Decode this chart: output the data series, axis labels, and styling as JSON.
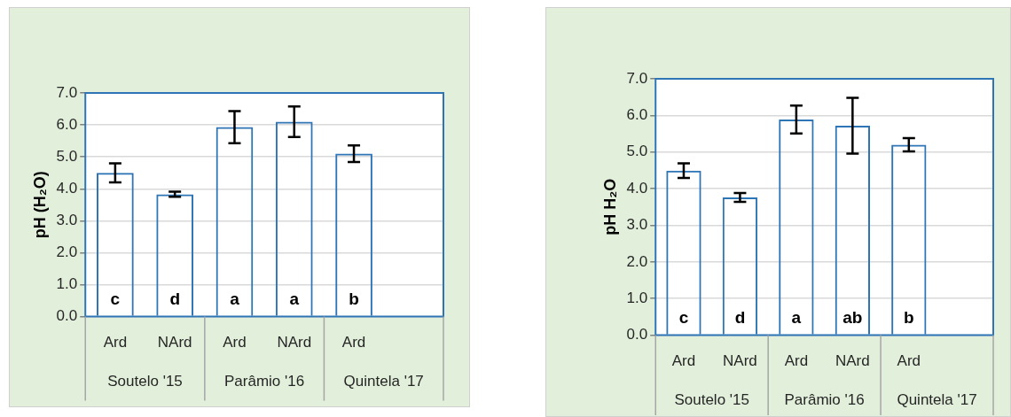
{
  "chart_data": [
    {
      "type": "bar",
      "ylabel": "pH (H₂O)",
      "categories": [
        "Ard",
        "NArd",
        "Ard",
        "NArd",
        "Ard",
        null
      ],
      "values": [
        4.5,
        3.83,
        5.93,
        6.1,
        5.1,
        null
      ],
      "errors": [
        0.3,
        0.08,
        0.5,
        0.48,
        0.26,
        null
      ],
      "value_labels": [
        "c",
        "d",
        "a",
        "a",
        "b",
        null
      ],
      "color": "#2e75b6",
      "ylim": [
        0,
        7
      ],
      "yticks": [
        {
          "value": 0,
          "label": "0.0"
        },
        {
          "value": 1,
          "label": "1.0"
        },
        {
          "value": 2,
          "label": "2.0"
        },
        {
          "value": 3,
          "label": "3.0"
        },
        {
          "value": 4,
          "label": "4.0"
        },
        {
          "value": 5,
          "label": "5.0"
        },
        {
          "value": 6,
          "label": "6.0"
        },
        {
          "value": 7,
          "label": "7.0"
        }
      ],
      "grid": "y",
      "annotations": [
        "Soutelo '15",
        "Parâmio '16",
        "Quintela '17"
      ]
    },
    {
      "type": "bar",
      "ylabel": "pH H₂O",
      "categories": [
        "Ard",
        "NArd",
        "Ard",
        "NArd",
        "Ard",
        null
      ],
      "values": [
        4.49,
        3.76,
        5.89,
        5.72,
        5.2,
        null
      ],
      "errors": [
        0.2,
        0.12,
        0.38,
        0.76,
        0.18,
        null
      ],
      "value_labels": [
        "c",
        "d",
        "a",
        "ab",
        "b",
        null
      ],
      "color": "#2e75b6",
      "ylim": [
        0,
        7
      ],
      "yticks": [
        {
          "value": 0,
          "label": "0.0"
        },
        {
          "value": 1,
          "label": "1.0"
        },
        {
          "value": 2,
          "label": "2.0"
        },
        {
          "value": 3,
          "label": "3.0"
        },
        {
          "value": 4,
          "label": "4.0"
        },
        {
          "value": 5,
          "label": "5.0"
        },
        {
          "value": 6,
          "label": "6.0"
        },
        {
          "value": 7,
          "label": "7.0"
        }
      ],
      "grid": "y",
      "annotations": [
        "Soutelo '15",
        "Parâmio '16",
        "Quintela '17"
      ]
    }
  ]
}
